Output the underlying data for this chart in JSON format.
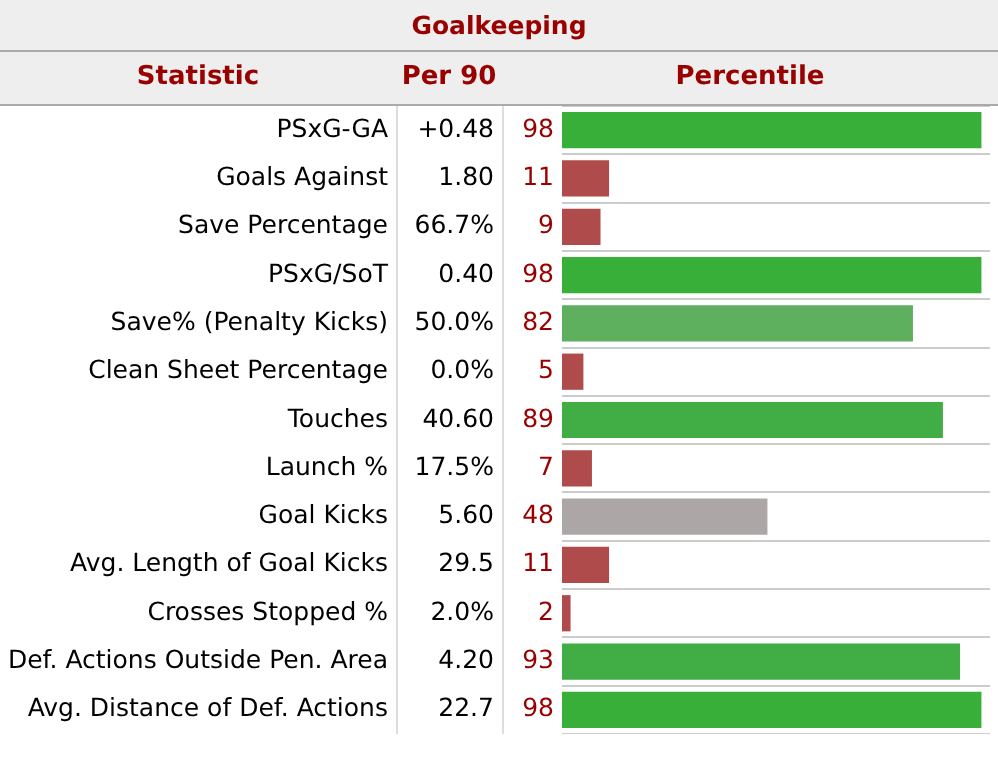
{
  "chart_data": {
    "type": "bar",
    "orientation": "horizontal",
    "title": "Goalkeeping",
    "categories": [
      "PSxG-GA",
      "Goals Against",
      "Save Percentage",
      "PSxG/SoT",
      "Save% (Penalty Kicks)",
      "Clean Sheet Percentage",
      "Touches",
      "Launch %",
      "Goal Kicks",
      "Avg. Length of Goal Kicks",
      "Crosses Stopped %",
      "Def. Actions Outside Pen. Area",
      "Avg. Distance of Def. Actions"
    ],
    "values": [
      98,
      11,
      9,
      98,
      82,
      5,
      89,
      7,
      48,
      11,
      2,
      93,
      98
    ],
    "colors": [
      "#38af38",
      "#b04b4b",
      "#b04b4b",
      "#38af38",
      "#5eaf5e",
      "#b04b4b",
      "#41ad45",
      "#b04b4b",
      "#aca7a6",
      "#b04b4b",
      "#b04b4b",
      "#41ad45",
      "#38af38"
    ],
    "xlim": [
      0,
      100
    ],
    "tick_labels": "y",
    "data_labels": true,
    "grid": "y",
    "annotations": [
      "Statistic",
      "Per 90",
      "Percentile",
      "+0.48",
      "1.80",
      "66.7%",
      "0.40",
      "50.0%",
      "0.0%",
      "40.60",
      "17.5%",
      "5.60",
      "29.5",
      "2.0%",
      "4.20",
      "22.7"
    ]
  }
}
